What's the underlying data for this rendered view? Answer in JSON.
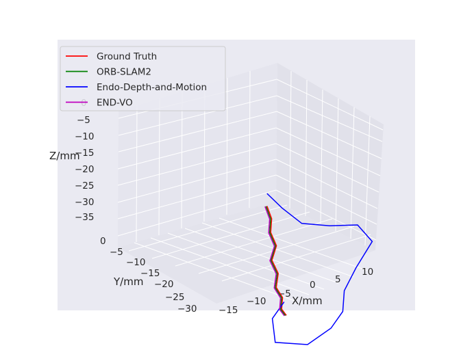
{
  "chart_data": {
    "type": "line",
    "projection": "3d",
    "title": "",
    "xlabel": "X/mm",
    "ylabel": "Y/mm",
    "zlabel": "Z/mm",
    "x_ticks": [
      "−15",
      "−10",
      "−5",
      "0",
      "5",
      "10"
    ],
    "y_ticks": [
      "0",
      "−5",
      "−10",
      "−15",
      "−20",
      "−25",
      "−30"
    ],
    "z_ticks": [
      "0",
      "−5",
      "−10",
      "−15",
      "−20",
      "−25",
      "−30",
      "−35"
    ],
    "legend_position": "upper-left",
    "grid": true,
    "series": [
      {
        "name": "Ground Truth",
        "color": "#ff0000",
        "points": [
          [
            -7.5,
            -5,
            -4
          ],
          [
            -6.8,
            -5.5,
            -8
          ],
          [
            -7.2,
            -6,
            -12
          ],
          [
            -6.5,
            -7,
            -16
          ],
          [
            -7.6,
            -7.5,
            -20
          ],
          [
            -6.8,
            -8.5,
            -24
          ],
          [
            -7.4,
            -9,
            -28
          ],
          [
            -6.6,
            -10,
            -31
          ],
          [
            -7.2,
            -11,
            -34
          ],
          [
            -6.5,
            -11.5,
            -36
          ]
        ]
      },
      {
        "name": "ORB-SLAM2",
        "color": "#008000",
        "points": [
          [
            -7.7,
            -5,
            -4
          ],
          [
            -7.0,
            -5.5,
            -8
          ],
          [
            -7.4,
            -6,
            -12
          ],
          [
            -6.7,
            -7,
            -16
          ],
          [
            -7.8,
            -7.5,
            -20
          ],
          [
            -7.0,
            -8.5,
            -24
          ],
          [
            -7.6,
            -9,
            -28
          ],
          [
            -6.8,
            -10,
            -31
          ],
          [
            -7.4,
            -11,
            -34
          ],
          [
            -6.7,
            -11.5,
            -36
          ]
        ]
      },
      {
        "name": "Endo-Depth-and-Motion",
        "color": "#0000ff",
        "points": [
          [
            -7.5,
            -5,
            0
          ],
          [
            -5,
            -6,
            -5
          ],
          [
            -2,
            -8,
            -10
          ],
          [
            3,
            -9,
            -12
          ],
          [
            8,
            -10,
            -13
          ],
          [
            10,
            -12,
            -18
          ],
          [
            6,
            -14,
            -24
          ],
          [
            2,
            -18,
            -28
          ],
          [
            0,
            -22,
            -32
          ],
          [
            -4,
            -26,
            -34
          ],
          [
            -9,
            -27,
            -37
          ],
          [
            -14,
            -24,
            -36
          ],
          [
            -12,
            -18,
            -32
          ],
          [
            -8,
            -14,
            -30
          ]
        ]
      },
      {
        "name": "END-VO",
        "color": "#bf00bf",
        "points": [
          [
            -7.9,
            -5,
            -4
          ],
          [
            -7.2,
            -5.5,
            -8
          ],
          [
            -7.6,
            -6,
            -12
          ],
          [
            -6.9,
            -7,
            -16
          ],
          [
            -8.0,
            -7.5,
            -20
          ],
          [
            -7.2,
            -8.5,
            -24
          ],
          [
            -7.8,
            -9,
            -28
          ],
          [
            -7.0,
            -10,
            -31
          ],
          [
            -7.6,
            -11,
            -34
          ],
          [
            -6.9,
            -11.5,
            -36
          ]
        ]
      }
    ]
  }
}
